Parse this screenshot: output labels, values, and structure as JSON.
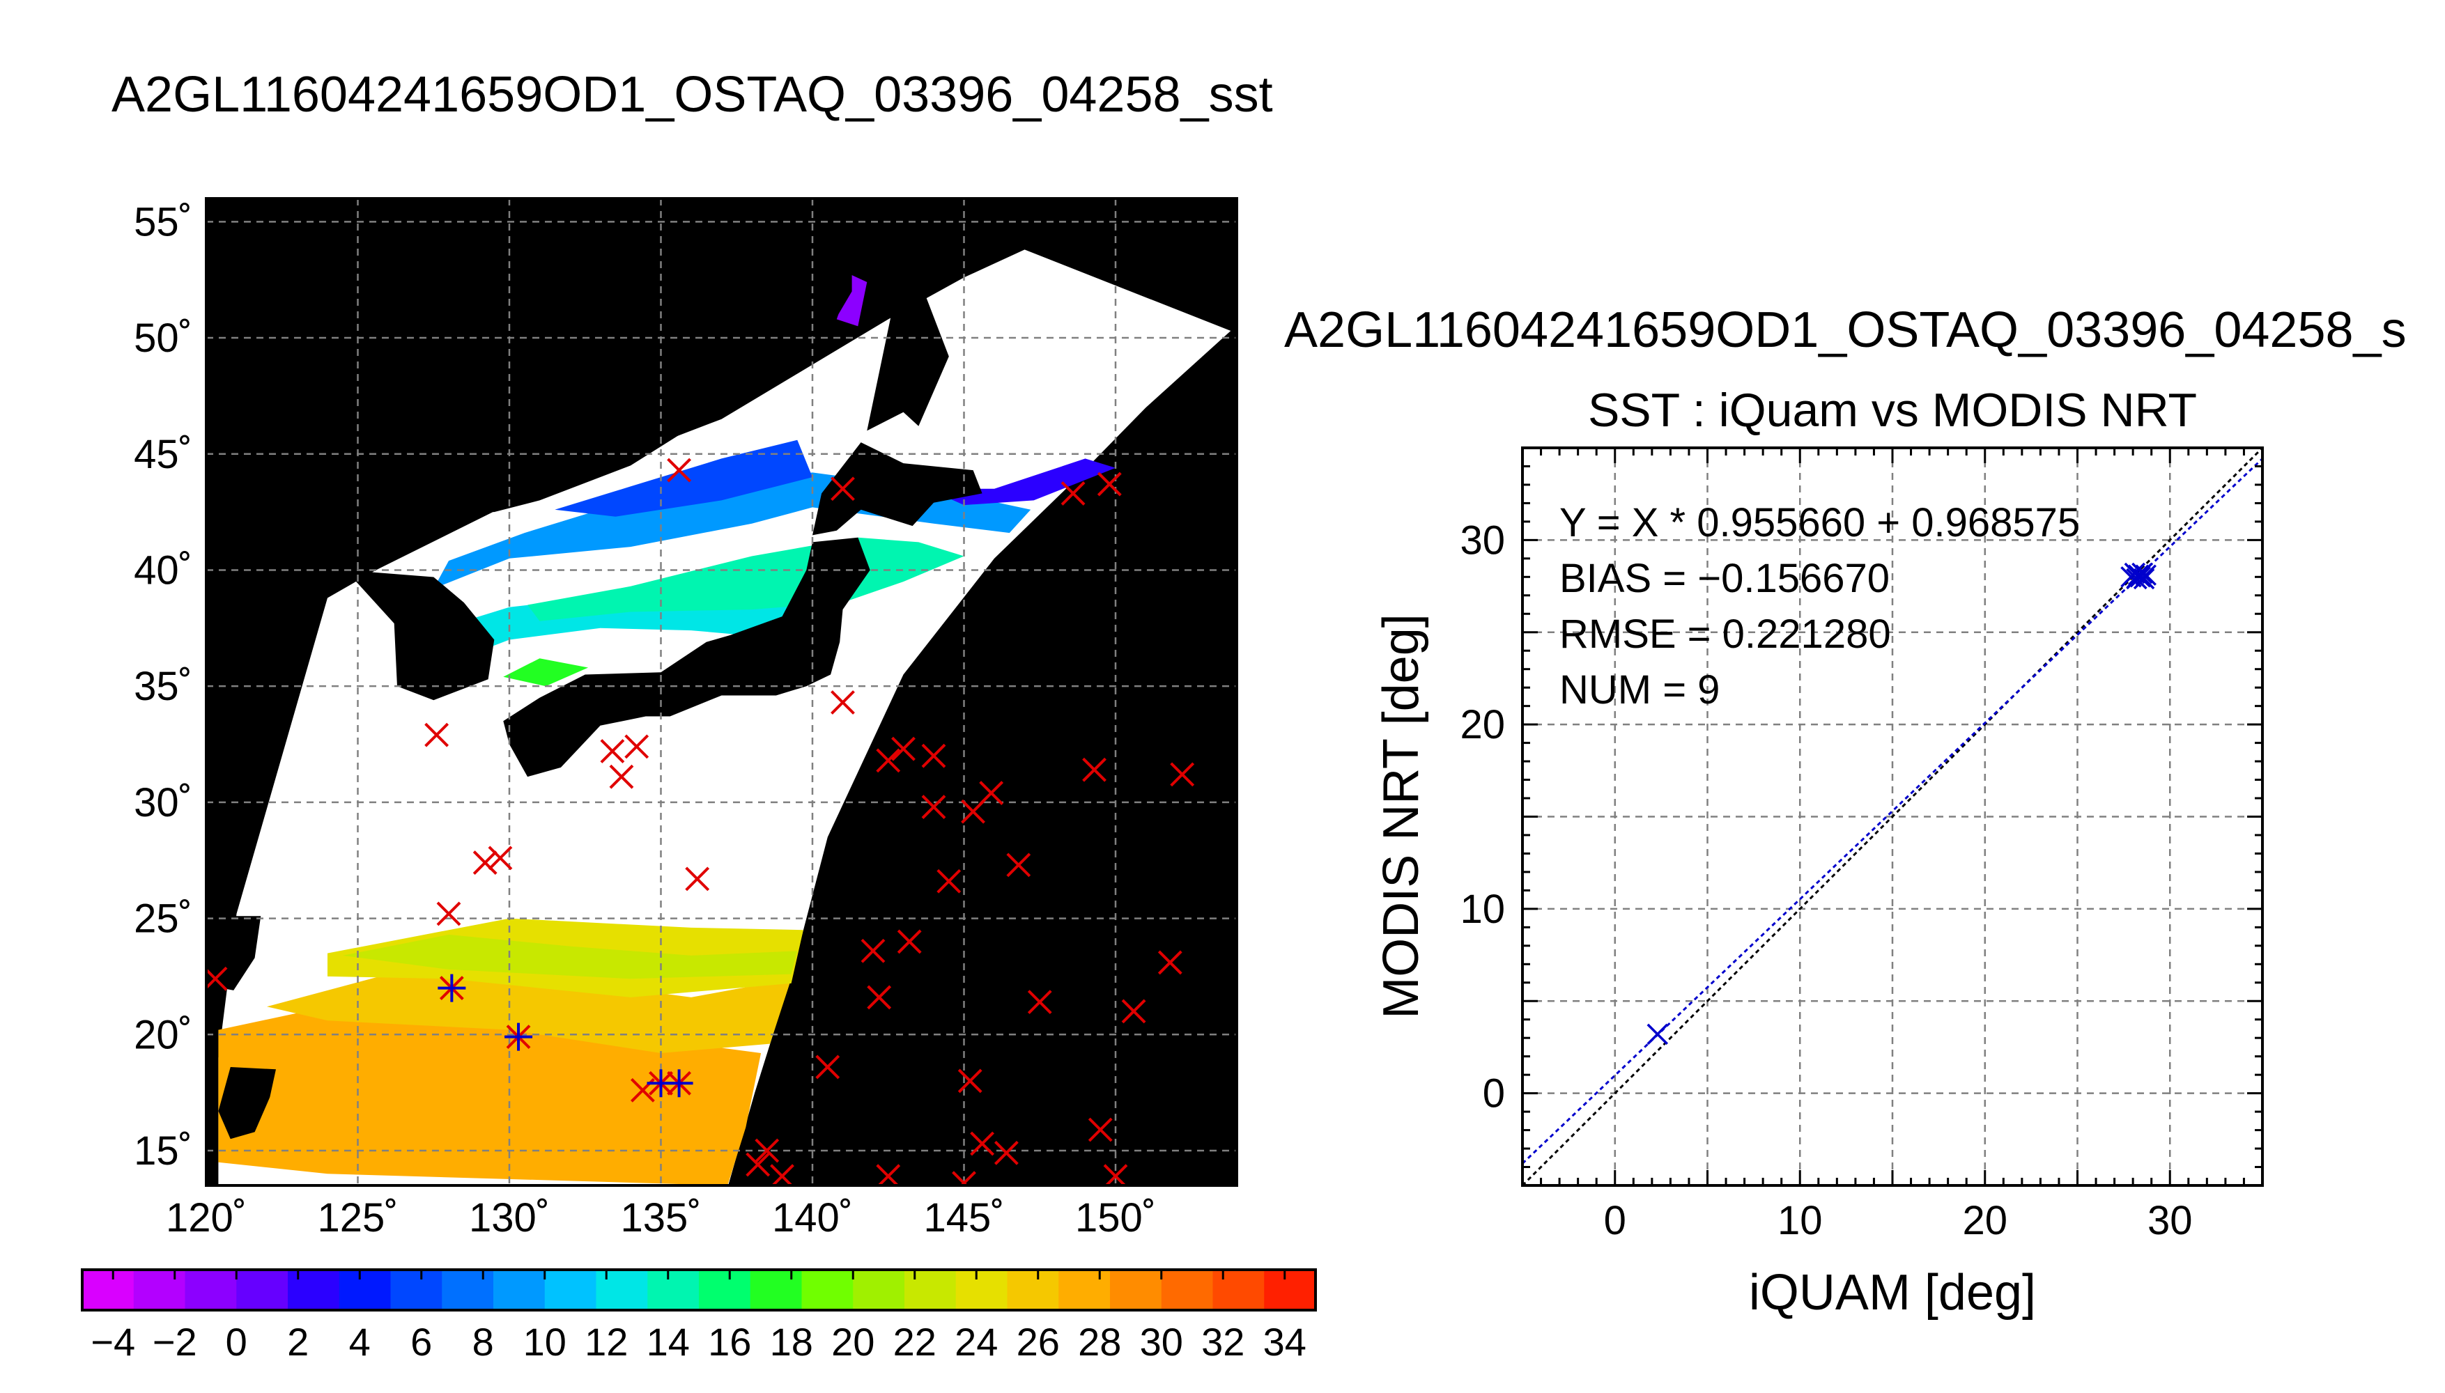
{
  "map_title": "A2GL11604241659OD1_OSTAQ_03396_04258_sst",
  "scatter_suptitle": "A2GL11604241659OD1_OSTAQ_03396_04258_s",
  "colors": {
    "background": "#ffffff",
    "land": "#000000",
    "grid": "#808080",
    "suptitle_gray": "#888888",
    "marker_red": "#e00000",
    "marker_blue": "#0000cc",
    "fit_line": "#0000cc"
  },
  "chart_data": [
    {
      "type": "map",
      "title": "A2GL11604241659OD1_OSTAQ_03396_04258_sst",
      "lon_ticks": [
        "120˚",
        "125˚",
        "130˚",
        "135˚",
        "140˚",
        "145˚",
        "150˚"
      ],
      "lat_ticks": [
        "15˚",
        "20˚",
        "25˚",
        "30˚",
        "35˚",
        "40˚",
        "45˚",
        "50˚",
        "55˚"
      ],
      "lon_range": [
        120,
        154
      ],
      "lat_range": [
        13.5,
        56
      ],
      "grid": true,
      "colorbar": {
        "range": [
          -5,
          35
        ],
        "step": 2,
        "tick_labels": [
          "−4",
          "−2",
          "0",
          "2",
          "4",
          "6",
          "8",
          "10",
          "12",
          "14",
          "16",
          "18",
          "20",
          "22",
          "24",
          "26",
          "28",
          "30",
          "32",
          "34"
        ],
        "colors": [
          "#d900ff",
          "#b300ff",
          "#8c00ff",
          "#6600ff",
          "#2b00ff",
          "#0019ff",
          "#0047ff",
          "#0070ff",
          "#0099ff",
          "#00c2ff",
          "#00e6e6",
          "#00f5b0",
          "#00ff6e",
          "#22ff22",
          "#70ff00",
          "#a0f000",
          "#c8e800",
          "#e6e000",
          "#f5c800",
          "#ffad00",
          "#ff8c00",
          "#ff6a00",
          "#ff4a00",
          "#ff2000"
        ]
      },
      "stations_x": [
        [
          120.3,
          22.4
        ],
        [
          127.6,
          32.9
        ],
        [
          128.0,
          25.2
        ],
        [
          129.2,
          27.4
        ],
        [
          129.7,
          27.6
        ],
        [
          133.4,
          32.2
        ],
        [
          133.7,
          31.1
        ],
        [
          134.2,
          32.4
        ],
        [
          134.4,
          17.6
        ],
        [
          135.6,
          44.3
        ],
        [
          136.2,
          26.7
        ],
        [
          138.2,
          14.4
        ],
        [
          138.5,
          15.0
        ],
        [
          139.0,
          13.9
        ],
        [
          140.5,
          18.6
        ],
        [
          141.0,
          43.5
        ],
        [
          141.0,
          34.3
        ],
        [
          142.0,
          23.6
        ],
        [
          142.2,
          21.6
        ],
        [
          142.5,
          13.9
        ],
        [
          142.5,
          31.8
        ],
        [
          143.0,
          32.3
        ],
        [
          143.2,
          24.0
        ],
        [
          144.0,
          32.0
        ],
        [
          144.0,
          29.8
        ],
        [
          144.5,
          26.6
        ],
        [
          145.0,
          13.6
        ],
        [
          145.2,
          18.0
        ],
        [
          145.3,
          29.6
        ],
        [
          145.6,
          15.3
        ],
        [
          145.9,
          30.4
        ],
        [
          146.4,
          14.9
        ],
        [
          146.8,
          27.3
        ],
        [
          147.5,
          21.4
        ],
        [
          148.6,
          43.3
        ],
        [
          149.3,
          31.4
        ],
        [
          149.5,
          15.9
        ],
        [
          149.8,
          43.7
        ],
        [
          150.0,
          13.9
        ],
        [
          150.6,
          21.0
        ],
        [
          151.8,
          23.1
        ],
        [
          152.2,
          31.2
        ]
      ],
      "stations_matched": [
        [
          128.1,
          22.0
        ],
        [
          130.3,
          19.9
        ],
        [
          135.0,
          17.9
        ],
        [
          135.6,
          17.9
        ]
      ]
    },
    {
      "type": "scatter",
      "title": "SST : iQuam vs MODIS NRT",
      "xlabel": "iQUAM [deg]",
      "ylabel": "MODIS NRT [deg]",
      "xlim": [
        -5,
        35
      ],
      "ylim": [
        -5,
        35
      ],
      "xticks": [
        0,
        10,
        20,
        30
      ],
      "yticks": [
        0,
        10,
        20,
        30
      ],
      "grid": true,
      "x": [
        2.3,
        27.9,
        28.1,
        28.2,
        28.3,
        28.4,
        28.5,
        28.6,
        28.7
      ],
      "y": [
        3.2,
        28.0,
        28.2,
        27.9,
        28.1,
        28.0,
        28.2,
        27.9,
        28.1
      ],
      "fit": {
        "slope": 0.95566,
        "intercept": 0.968575
      },
      "stats": {
        "equation": "Y = X * 0.955660 + 0.968575",
        "bias": "BIAS = −0.156670",
        "rmse": "RMSE = 0.221280",
        "num": "NUM = 9"
      }
    }
  ]
}
